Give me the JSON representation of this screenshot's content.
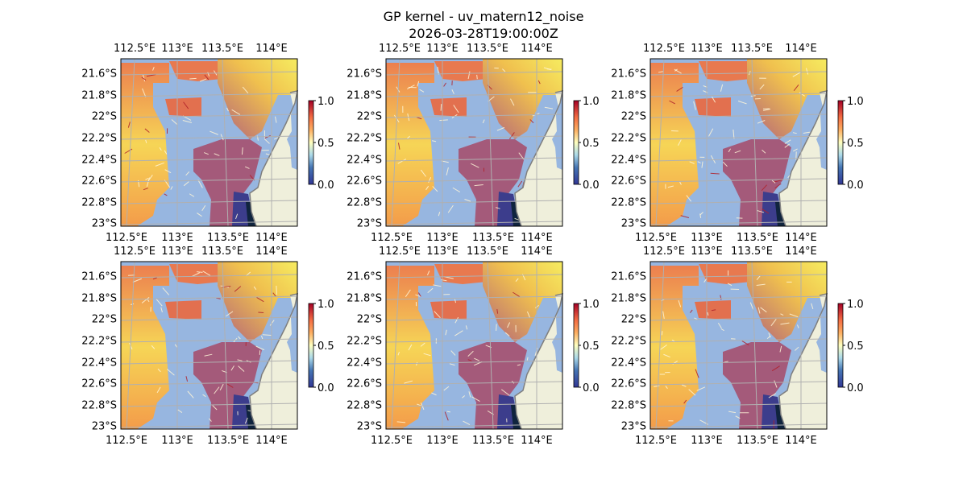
{
  "chart_data": {
    "type": "heatmap",
    "title": "GP kernel - uv_matern12_noise",
    "subtitle": "2026-03-28T19:00:00Z",
    "colormap": "RdYlBu_r",
    "colorbar": {
      "ticks": [
        "1.0",
        "0.5",
        "0.0"
      ],
      "range": [
        0,
        1
      ]
    },
    "lat_ticks": [
      "21.6°S",
      "21.8°S",
      "22°S",
      "22.2°S",
      "22.4°S",
      "22.6°S",
      "22.8°S",
      "23°S"
    ],
    "lon_ticks": [
      "112.5°E",
      "113°E",
      "113.5°E",
      "114°E"
    ],
    "lon_range": [
      112.4,
      114.2
    ],
    "lat_range": [
      -23.0,
      -21.45
    ],
    "panels": [
      {
        "name": "panel-1"
      },
      {
        "name": "panel-2"
      },
      {
        "name": "panel-3"
      },
      {
        "name": "panel-4"
      },
      {
        "name": "panel-5"
      },
      {
        "name": "panel-6"
      }
    ],
    "colors": {
      "ocean": "#97b6e0",
      "land": "#efefdb",
      "coast": "#7f7f7f",
      "grid": "#b0b0b0"
    }
  }
}
